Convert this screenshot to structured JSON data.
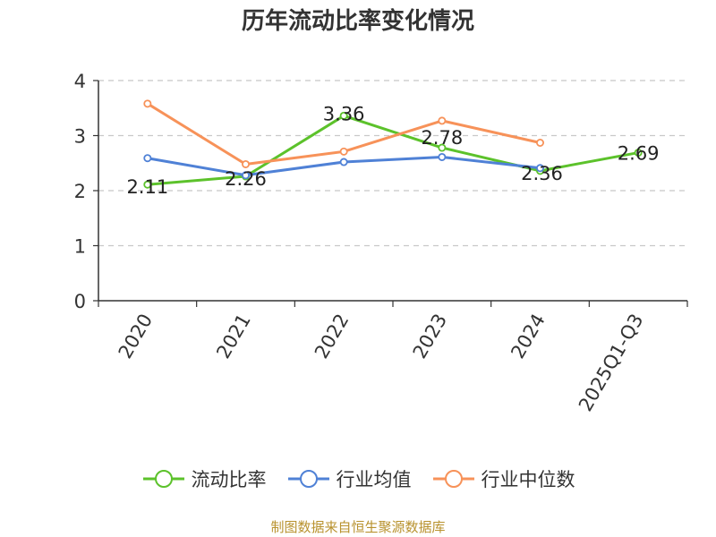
{
  "chart_data": {
    "type": "line",
    "title": "历年流动比率变化情况",
    "categories": [
      "2020",
      "2021",
      "2022",
      "2023",
      "2024",
      "2025Q1-Q3"
    ],
    "ylim": [
      0,
      4
    ],
    "yticks": [
      "0",
      "1",
      "2",
      "3",
      "4"
    ],
    "grid": true,
    "legend_position": "bottom",
    "series": [
      {
        "name": "流动比率",
        "color": "#5cc22b",
        "values": [
          2.11,
          2.26,
          3.36,
          2.78,
          2.36,
          2.69
        ],
        "labels": [
          "2.11",
          "2.26",
          "3.36",
          "2.78",
          "2.36",
          "2.69"
        ]
      },
      {
        "name": "行业均值",
        "color": "#4f81d6",
        "values": [
          2.59,
          2.28,
          2.52,
          2.61,
          2.41,
          null
        ]
      },
      {
        "name": "行业中位数",
        "color": "#f79259",
        "values": [
          3.58,
          2.48,
          2.71,
          3.27,
          2.87,
          null
        ]
      }
    ]
  },
  "source_text": "制图数据来自恒生聚源数据库"
}
